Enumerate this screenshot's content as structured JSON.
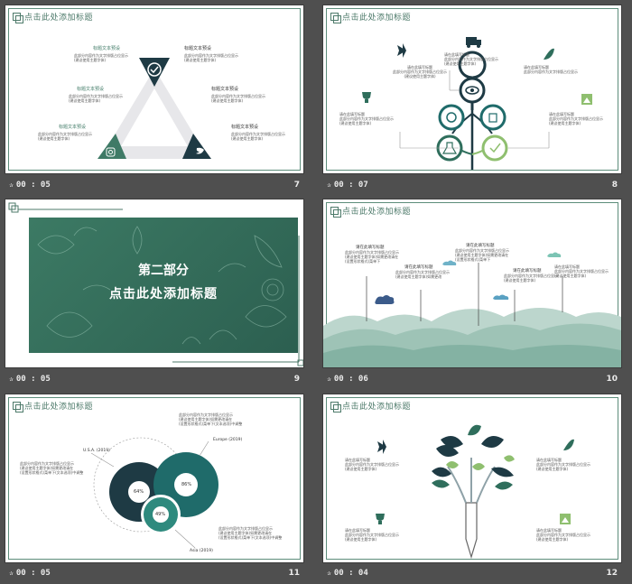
{
  "slides": [
    {
      "header": "点击此处添加标题",
      "time": "00 : 05",
      "number": "7",
      "items": [
        "标题文本预设",
        "标题文本预设",
        "标题文本预设",
        "标题文本预设",
        "标题文本预设",
        "标题文本预设"
      ]
    },
    {
      "header": "点击此处添加标题",
      "time": "00 : 07",
      "number": "8"
    },
    {
      "title": "第二部分",
      "subtitle": "点击此处添加标题",
      "time": "00 : 05",
      "number": "9"
    },
    {
      "header": "点击此处添加标题",
      "time": "00 : 06",
      "number": "10",
      "labels": [
        "请在此填写标题",
        "请在此填写标题",
        "请在此填写标题",
        "请在此填写标题"
      ]
    },
    {
      "header": "点击此处添加标题",
      "time": "00 : 05",
      "number": "11",
      "chart_labels": [
        "U.S.A. (2019)",
        "Europe (2019)",
        "Asia (2019)"
      ],
      "percents": [
        "64%",
        "86%",
        "49%"
      ]
    },
    {
      "header": "点击此处添加标题",
      "time": "00 : 04",
      "number": "12"
    }
  ],
  "colors": {
    "accent": "#2f6e5c",
    "dark": "#1e3a44",
    "teal": "#1f6b6a",
    "light_green": "#8fbf6f",
    "background": "#4f4f4f"
  }
}
